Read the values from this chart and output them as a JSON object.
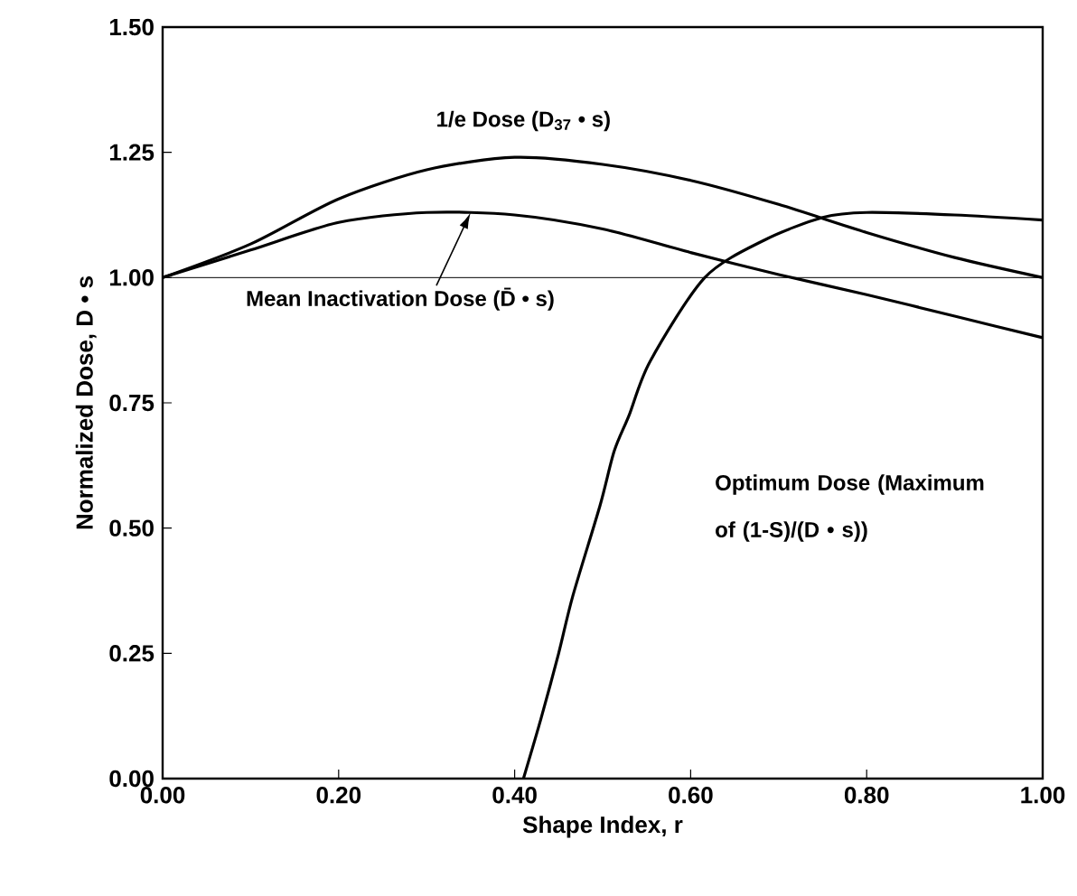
{
  "chart_data": {
    "type": "line",
    "xlabel": "Shape Index, r",
    "ylabel": "Normalized Dose, D • s",
    "x": [
      0,
      0.1,
      0.2,
      0.3,
      0.4,
      0.5,
      0.6,
      0.7,
      0.8,
      0.9,
      1.0
    ],
    "series": [
      {
        "name": "1/e Dose (D$_{37}$ • s)",
        "color": "#000000",
        "values": [
          1.0,
          1.067,
          1.157,
          1.215,
          1.24,
          1.226,
          1.194,
          1.146,
          1.09,
          1.04,
          1.0
        ]
      },
      {
        "name": "Mean Inactivation Dose (D̄ • s)",
        "color": "#000000",
        "values": [
          1.0,
          1.055,
          1.11,
          1.13,
          1.125,
          1.097,
          1.05,
          1.006,
          0.966,
          0.923,
          0.88
        ]
      },
      {
        "name": "Optimum Dose (Maximum of (1-S)/(D • s))",
        "color": "#000000",
        "x": [
          0.41,
          0.43,
          0.45,
          0.466,
          0.497,
          0.513,
          0.53,
          0.554,
          0.616,
          0.684,
          0.75,
          0.8,
          0.9,
          1.0
        ],
        "values": [
          0,
          0.12,
          0.25,
          0.364,
          0.545,
          0.653,
          0.725,
          0.833,
          1.0,
          1.075,
          1.12,
          1.13,
          1.125,
          1.115
        ]
      }
    ],
    "xlim": [
      0,
      1
    ],
    "ylim": [
      0,
      1.5
    ],
    "xticks": [
      {
        "value": 0,
        "label": "0.00"
      },
      {
        "value": 0.2,
        "label": "0.20"
      },
      {
        "value": 0.4,
        "label": "0.40"
      },
      {
        "value": 0.6,
        "label": "0.60"
      },
      {
        "value": 0.8,
        "label": "0.80"
      },
      {
        "value": 1.0,
        "label": "1.00"
      }
    ],
    "yticks": [
      {
        "value": 0,
        "label": "0.00"
      },
      {
        "value": 0.25,
        "label": "0.25"
      },
      {
        "value": 0.5,
        "label": "0.50"
      },
      {
        "value": 0.75,
        "label": "0.75"
      },
      {
        "value": 1.0,
        "label": "1.00"
      },
      {
        "value": 1.25,
        "label": "1.25"
      },
      {
        "value": 1.5,
        "label": "1.50"
      }
    ],
    "ref_lines": [
      {
        "axis": "y",
        "value": 1.0,
        "color": "#000000"
      }
    ],
    "grid": false,
    "legend": false,
    "marker": "none",
    "line_style": "solid"
  }
}
